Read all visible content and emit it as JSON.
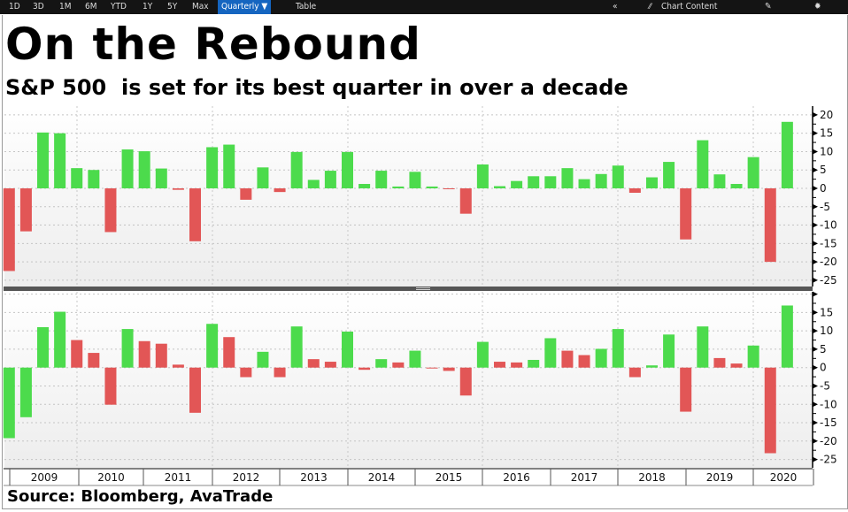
{
  "toolbar": {
    "ranges": [
      "1D",
      "3D",
      "1M",
      "6M",
      "YTD",
      "1Y",
      "5Y",
      "Max"
    ],
    "period": "Quarterly ▼",
    "table": "Table",
    "collapse": "«",
    "chart_content": "Chart Content",
    "edit_icon": "pencil-icon",
    "settings_icon": "gear-icon"
  },
  "title": "On the Rebound",
  "subtitle": "S&P 500  is set for its best quarter in over a decade",
  "source": "Source: Bloomberg, AvaTrade",
  "colors": {
    "up": "#4cdb4c",
    "down": "#e25656"
  },
  "chart_data": [
    {
      "type": "bar",
      "panel": "top",
      "x_tick_labels": [
        "2009",
        "2010",
        "2011",
        "2012",
        "2013",
        "2014",
        "2015",
        "2016",
        "2017",
        "2018",
        "2019",
        "2020"
      ],
      "ylim": [
        -26.7,
        22.4
      ],
      "y_ticks": [
        20,
        15,
        10,
        5,
        0,
        -5,
        -10,
        -15,
        -20,
        -25
      ],
      "grid": true,
      "values": [
        -22.5,
        -11.7,
        15.2,
        15.0,
        5.5,
        5.0,
        -11.9,
        10.6,
        10.1,
        5.4,
        -0.4,
        -14.4,
        11.2,
        11.9,
        -3.1,
        5.7,
        -1.0,
        9.9,
        2.3,
        4.8,
        9.9,
        1.2,
        4.8,
        0.5,
        4.5,
        0.5,
        -0.1,
        -6.9,
        6.5,
        0.6,
        2.0,
        3.3,
        3.3,
        5.5,
        2.5,
        3.9,
        6.2,
        -1.2,
        3.0,
        7.2,
        -13.9,
        13.1,
        3.8,
        1.2,
        8.5,
        -20.0,
        18.1
      ],
      "bar_colors": "sign"
    },
    {
      "type": "bar",
      "panel": "bottom",
      "x_tick_labels": [
        "2009",
        "2010",
        "2011",
        "2012",
        "2013",
        "2014",
        "2015",
        "2016",
        "2017",
        "2018",
        "2019",
        "2020"
      ],
      "ylim": [
        -26.8,
        20.6
      ],
      "y_ticks": [
        15,
        10,
        5,
        0,
        -5,
        -10,
        -15,
        -20,
        -25
      ],
      "grid": true,
      "values": [
        -19.2,
        -13.5,
        11.0,
        15.2,
        7.5,
        4.0,
        -10.1,
        10.5,
        7.2,
        6.5,
        0.8,
        -12.3,
        11.9,
        8.3,
        -2.6,
        4.3,
        -2.6,
        11.2,
        2.3,
        1.6,
        9.8,
        -0.6,
        2.3,
        1.4,
        4.6,
        -0.2,
        -0.9,
        -7.6,
        7.0,
        1.6,
        1.4,
        2.1,
        8.0,
        4.6,
        3.4,
        5.1,
        10.5,
        -2.6,
        0.6,
        9.0,
        -12.0,
        11.2,
        2.6,
        1.1,
        6.0,
        -23.3,
        16.9
      ],
      "bar_colors": [
        "up",
        "up",
        "up",
        "up",
        "down",
        "down",
        "down",
        "up",
        "down",
        "down",
        "down",
        "down",
        "up",
        "down",
        "down",
        "up",
        "down",
        "up",
        "down",
        "down",
        "up",
        "down",
        "up",
        "down",
        "up",
        "down",
        "down",
        "down",
        "up",
        "down",
        "down",
        "up",
        "up",
        "down",
        "down",
        "up",
        "up",
        "down",
        "up",
        "up",
        "down",
        "up",
        "down",
        "down",
        "up",
        "down",
        "up"
      ]
    }
  ]
}
